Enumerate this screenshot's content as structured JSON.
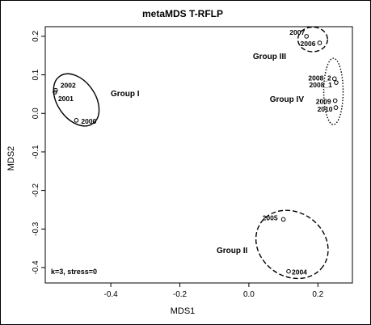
{
  "chart_data": {
    "type": "scatter",
    "title": "metaMDS  T-RFLP",
    "xlabel": "MDS1",
    "ylabel": "MDS2",
    "xlim": [
      -0.59,
      0.3
    ],
    "ylim": [
      -0.44,
      0.225
    ],
    "grid": false,
    "xticks": [
      -0.4,
      -0.2,
      0.0,
      0.2
    ],
    "xtick_labels": [
      "-0.4",
      "-0.2",
      "0.0",
      "0.2"
    ],
    "yticks": [
      -0.4,
      -0.3,
      -0.2,
      -0.1,
      0.0,
      0.1,
      0.2
    ],
    "ytick_labels": [
      "-0.4",
      "-0.3",
      "-0.2",
      "-0.1",
      "0.0",
      "0.1",
      "0.2"
    ],
    "annotation": "k=3, stress=0",
    "points": [
      {
        "label": "2002",
        "x": -0.56,
        "y": 0.06
      },
      {
        "label": "2001",
        "x": -0.562,
        "y": 0.055
      },
      {
        "label": "2000",
        "x": -0.5,
        "y": -0.018
      },
      {
        "label": "2007",
        "x": 0.167,
        "y": 0.2
      },
      {
        "label": "2006",
        "x": 0.205,
        "y": 0.183
      },
      {
        "label": "2008_2",
        "x": 0.248,
        "y": 0.09
      },
      {
        "label": "2008_1",
        "x": 0.253,
        "y": 0.08
      },
      {
        "label": "2009",
        "x": 0.25,
        "y": 0.033
      },
      {
        "label": "2010",
        "x": 0.252,
        "y": 0.015
      },
      {
        "label": "2005",
        "x": 0.1,
        "y": -0.275
      },
      {
        "label": "2004",
        "x": 0.115,
        "y": -0.41
      }
    ],
    "groups": [
      {
        "name": "Group I",
        "line": "solid",
        "cx": -0.5,
        "cy": 0.035,
        "rx": 0.055,
        "ry": 0.075,
        "rotate": -35
      },
      {
        "name": "Group II",
        "line": "dashed",
        "cx": 0.125,
        "cy": -0.34,
        "rx": 0.11,
        "ry": 0.083,
        "rotate": 35
      },
      {
        "name": "Group III",
        "line": "dashed",
        "cx": 0.185,
        "cy": 0.192,
        "rx": 0.043,
        "ry": 0.032,
        "rotate": 0
      },
      {
        "name": "Group IV",
        "line": "dotted",
        "cx": 0.245,
        "cy": 0.057,
        "rx": 0.028,
        "ry": 0.086,
        "rotate": 0
      }
    ]
  }
}
